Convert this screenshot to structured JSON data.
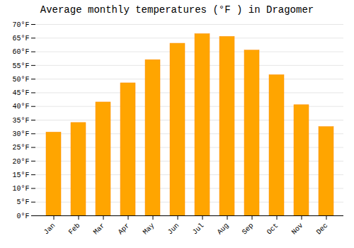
{
  "chart_data": {
    "type": "bar",
    "title": "Average monthly temperatures (°F ) in Dragomer",
    "categories": [
      "Jan",
      "Feb",
      "Mar",
      "Apr",
      "May",
      "Jun",
      "Jul",
      "Aug",
      "Sep",
      "Oct",
      "Nov",
      "Dec"
    ],
    "values": [
      30.5,
      34.0,
      41.5,
      48.5,
      57.0,
      63.0,
      66.5,
      65.5,
      60.5,
      51.5,
      40.5,
      32.5
    ],
    "color": "#FFA500",
    "ylim": [
      0,
      70
    ],
    "yticks": [
      {
        "value": 0,
        "label": "0°F"
      },
      {
        "value": 5,
        "label": "5°F"
      },
      {
        "value": 10,
        "label": "10°F"
      },
      {
        "value": 15,
        "label": "15°F"
      },
      {
        "value": 20,
        "label": "20°F"
      },
      {
        "value": 25,
        "label": "25°F"
      },
      {
        "value": 30,
        "label": "30°F"
      },
      {
        "value": 35,
        "label": "35°F"
      },
      {
        "value": 40,
        "label": "40°F"
      },
      {
        "value": 45,
        "label": "45°F"
      },
      {
        "value": 50,
        "label": "50°F"
      },
      {
        "value": 55,
        "label": "55°F"
      },
      {
        "value": 60,
        "label": "60°F"
      },
      {
        "value": 65,
        "label": "65°F"
      },
      {
        "value": 70,
        "label": "70°F"
      }
    ],
    "grid": true
  }
}
